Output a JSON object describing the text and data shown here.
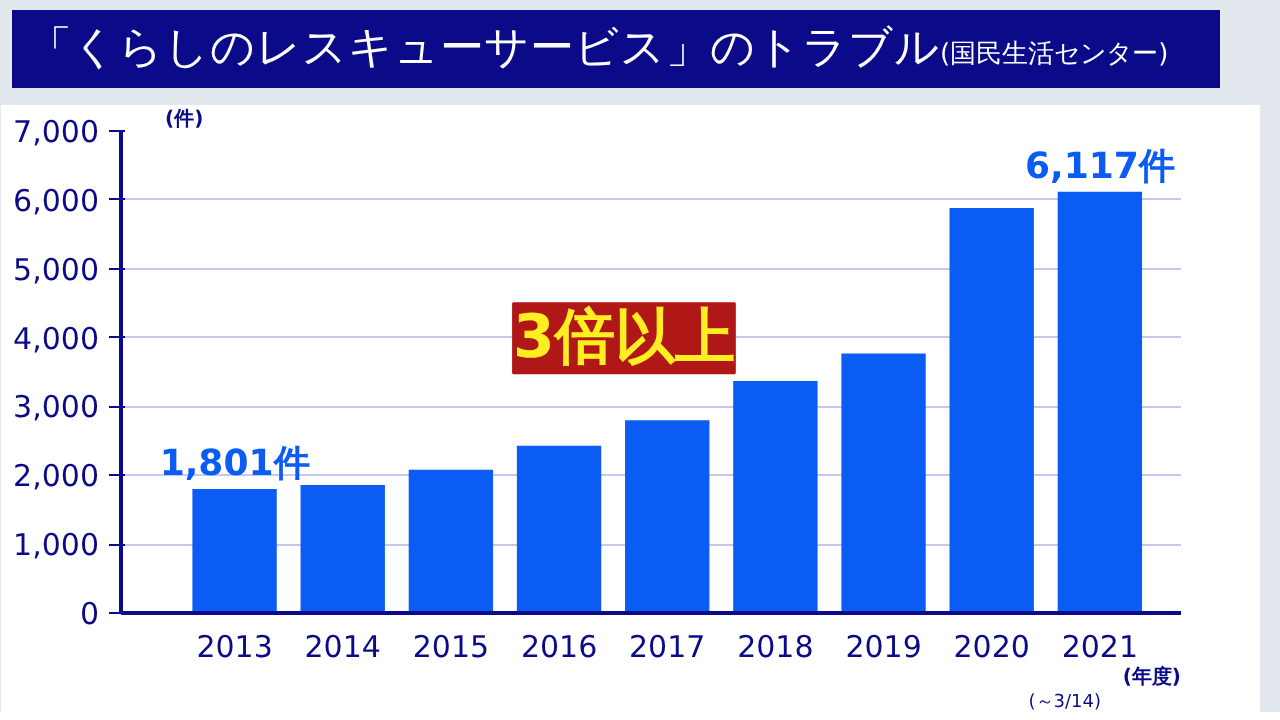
{
  "chart_data": {
    "type": "bar",
    "title": "「くらしのレスキューサービス」のトラブル",
    "subtitle": "(国民生活センター)",
    "xlabel": "(年度)",
    "ylabel": "(件)",
    "categories": [
      "2013",
      "2014",
      "2015",
      "2016",
      "2017",
      "2018",
      "2019",
      "2020",
      "2021"
    ],
    "values": [
      1801,
      1860,
      2080,
      2430,
      2800,
      3370,
      3770,
      5880,
      6117
    ],
    "value_labels": [
      "1,801件",
      null,
      null,
      null,
      null,
      null,
      null,
      null,
      "6,117件"
    ],
    "color": "#0a5cf5",
    "ylim": [
      0,
      7000
    ],
    "yticks": [
      0,
      {
        "value": 1000,
        "label": "1,000"
      },
      {
        "value": 2000,
        "label": "2,000"
      },
      {
        "value": 3000,
        "label": "3,000"
      },
      {
        "value": 4000,
        "label": "4,000"
      },
      {
        "value": 5000,
        "label": "5,000"
      },
      {
        "value": 6000,
        "label": "6,000"
      },
      {
        "value": 7000,
        "label": "7,000"
      }
    ],
    "grid": "y",
    "annotations": [
      "3倍以上",
      "(～3/14)"
    ]
  }
}
